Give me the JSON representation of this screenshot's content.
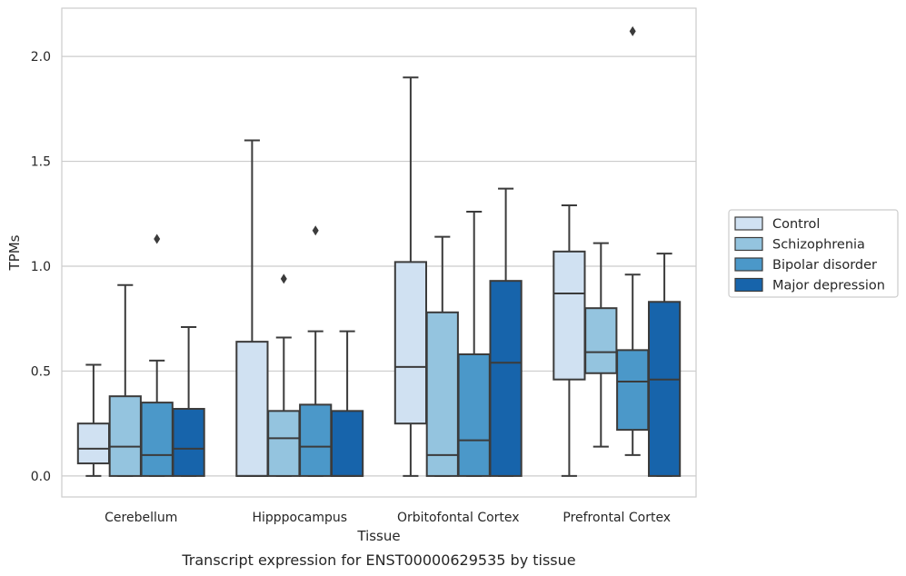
{
  "caption": "Transcript expression for ENST00000629535 by tissue",
  "chart_data": {
    "type": "box",
    "title": "",
    "xlabel": "Tissue",
    "ylabel": "TPMs",
    "ylim": [
      -0.1,
      2.23
    ],
    "yticks": [
      "0.0",
      "0.5",
      "1.0",
      "1.5",
      "2.0"
    ],
    "grid": "horizontal",
    "legend_position": "right",
    "categories": [
      "Cerebellum",
      "Hipppocampus",
      "Orbitofontal Cortex",
      "Prefrontal Cortex"
    ],
    "series": [
      {
        "name": "Control",
        "color": "#d0e1f2",
        "boxes": [
          {
            "whislo": 0.0,
            "q1": 0.06,
            "med": 0.13,
            "q3": 0.25,
            "whishi": 0.53,
            "fliers": []
          },
          {
            "whislo": 0.0,
            "q1": 0.0,
            "med": 0.0,
            "q3": 0.64,
            "whishi": 1.6,
            "fliers": []
          },
          {
            "whislo": 0.0,
            "q1": 0.25,
            "med": 0.52,
            "q3": 1.02,
            "whishi": 1.9,
            "fliers": []
          },
          {
            "whislo": 0.0,
            "q1": 0.46,
            "med": 0.87,
            "q3": 1.07,
            "whishi": 1.29,
            "fliers": []
          }
        ]
      },
      {
        "name": "Schizophrenia",
        "color": "#94c4df",
        "boxes": [
          {
            "whislo": 0.0,
            "q1": 0.0,
            "med": 0.14,
            "q3": 0.38,
            "whishi": 0.91,
            "fliers": []
          },
          {
            "whislo": 0.0,
            "q1": 0.0,
            "med": 0.18,
            "q3": 0.31,
            "whishi": 0.66,
            "fliers": [
              0.94
            ]
          },
          {
            "whislo": 0.0,
            "q1": 0.0,
            "med": 0.1,
            "q3": 0.78,
            "whishi": 1.14,
            "fliers": []
          },
          {
            "whislo": 0.14,
            "q1": 0.49,
            "med": 0.59,
            "q3": 0.8,
            "whishi": 1.11,
            "fliers": []
          }
        ]
      },
      {
        "name": "Bipolar disorder",
        "color": "#4b98c9",
        "boxes": [
          {
            "whislo": 0.0,
            "q1": 0.0,
            "med": 0.1,
            "q3": 0.35,
            "whishi": 0.55,
            "fliers": [
              1.13
            ]
          },
          {
            "whislo": 0.0,
            "q1": 0.0,
            "med": 0.14,
            "q3": 0.34,
            "whishi": 0.69,
            "fliers": [
              1.17
            ]
          },
          {
            "whislo": 0.0,
            "q1": 0.0,
            "med": 0.17,
            "q3": 0.58,
            "whishi": 1.26,
            "fliers": []
          },
          {
            "whislo": 0.1,
            "q1": 0.22,
            "med": 0.45,
            "q3": 0.6,
            "whishi": 0.96,
            "fliers": [
              2.12
            ]
          }
        ]
      },
      {
        "name": "Major depression",
        "color": "#1764ab",
        "boxes": [
          {
            "whislo": 0.0,
            "q1": 0.0,
            "med": 0.13,
            "q3": 0.32,
            "whishi": 0.71,
            "fliers": []
          },
          {
            "whislo": 0.0,
            "q1": 0.0,
            "med": 0.0,
            "q3": 0.31,
            "whishi": 0.69,
            "fliers": []
          },
          {
            "whislo": 0.0,
            "q1": 0.0,
            "med": 0.54,
            "q3": 0.93,
            "whishi": 1.37,
            "fliers": []
          },
          {
            "whislo": 0.0,
            "q1": 0.0,
            "med": 0.46,
            "q3": 0.83,
            "whishi": 1.06,
            "fliers": []
          }
        ]
      }
    ]
  }
}
